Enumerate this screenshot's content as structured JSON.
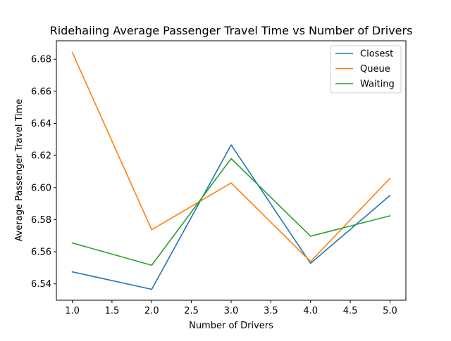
{
  "chart_data": {
    "type": "line",
    "title": "Ridehaiing Average Passenger Travel Time vs Number of Drivers",
    "xlabel": "Number of Drivers",
    "ylabel": "Average Passenger Travel Time",
    "x": [
      1,
      2,
      3,
      4,
      5
    ],
    "xlim": [
      0.8,
      5.2
    ],
    "ylim": [
      6.5298,
      6.6915
    ],
    "xticks": [
      1.0,
      1.5,
      2.0,
      2.5,
      3.0,
      3.5,
      4.0,
      4.5,
      5.0
    ],
    "xtick_labels": [
      "1.0",
      "1.5",
      "2.0",
      "2.5",
      "3.0",
      "3.5",
      "4.0",
      "4.5",
      "5.0"
    ],
    "yticks": [
      6.54,
      6.56,
      6.58,
      6.6,
      6.62,
      6.64,
      6.66,
      6.68
    ],
    "ytick_labels": [
      "6.54",
      "6.56",
      "6.58",
      "6.60",
      "6.62",
      "6.64",
      "6.66",
      "6.68"
    ],
    "grid": false,
    "legend_position": "top-right",
    "series": [
      {
        "name": "Closest",
        "color": "#1f77b4",
        "values": [
          6.5475,
          6.5366,
          6.6266,
          6.5528,
          6.5951
        ]
      },
      {
        "name": "Queue",
        "color": "#ff7f0e",
        "values": [
          6.6843,
          6.5737,
          6.6029,
          6.5539,
          6.6058
        ]
      },
      {
        "name": "Waiting",
        "color": "#2ca02c",
        "values": [
          6.5655,
          6.5516,
          6.6181,
          6.5697,
          6.5824
        ]
      }
    ]
  }
}
